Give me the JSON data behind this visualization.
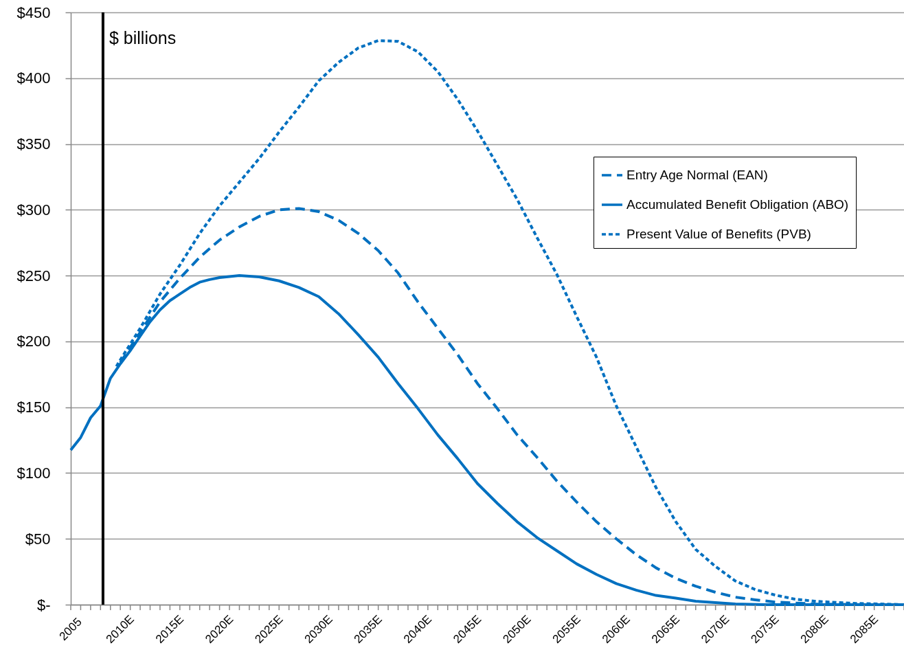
{
  "chart_data": {
    "type": "line",
    "annotations": [
      "$ billions"
    ],
    "xlim": [
      2005,
      2089
    ],
    "ylim": [
      0,
      450
    ],
    "xticks": [
      2005,
      {
        "value": 2006,
        "label": null
      },
      {
        "value": 2007,
        "label": null
      },
      {
        "value": 2008,
        "label": null
      },
      {
        "value": 2009,
        "label": null
      },
      {
        "value": 2010,
        "label": "2010E"
      },
      {
        "value": 2011,
        "label": null
      },
      {
        "value": 2012,
        "label": null
      },
      {
        "value": 2013,
        "label": null
      },
      {
        "value": 2014,
        "label": null
      },
      {
        "value": 2015,
        "label": "2015E"
      },
      {
        "value": 2016,
        "label": null
      },
      {
        "value": 2017,
        "label": null
      },
      {
        "value": 2018,
        "label": null
      },
      {
        "value": 2019,
        "label": null
      },
      {
        "value": 2020,
        "label": "2020E"
      },
      {
        "value": 2021,
        "label": null
      },
      {
        "value": 2022,
        "label": null
      },
      {
        "value": 2023,
        "label": null
      },
      {
        "value": 2024,
        "label": null
      },
      {
        "value": 2025,
        "label": "2025E"
      },
      {
        "value": 2026,
        "label": null
      },
      {
        "value": 2027,
        "label": null
      },
      {
        "value": 2028,
        "label": null
      },
      {
        "value": 2029,
        "label": null
      },
      {
        "value": 2030,
        "label": "2030E"
      },
      {
        "value": 2031,
        "label": null
      },
      {
        "value": 2032,
        "label": null
      },
      {
        "value": 2033,
        "label": null
      },
      {
        "value": 2034,
        "label": null
      },
      {
        "value": 2035,
        "label": "2035E"
      },
      {
        "value": 2036,
        "label": null
      },
      {
        "value": 2037,
        "label": null
      },
      {
        "value": 2038,
        "label": null
      },
      {
        "value": 2039,
        "label": null
      },
      {
        "value": 2040,
        "label": "2040E"
      },
      {
        "value": 2041,
        "label": null
      },
      {
        "value": 2042,
        "label": null
      },
      {
        "value": 2043,
        "label": null
      },
      {
        "value": 2044,
        "label": null
      },
      {
        "value": 2045,
        "label": "2045E"
      },
      {
        "value": 2046,
        "label": null
      },
      {
        "value": 2047,
        "label": null
      },
      {
        "value": 2048,
        "label": null
      },
      {
        "value": 2049,
        "label": null
      },
      {
        "value": 2050,
        "label": "2050E"
      },
      {
        "value": 2051,
        "label": null
      },
      {
        "value": 2052,
        "label": null
      },
      {
        "value": 2053,
        "label": null
      },
      {
        "value": 2054,
        "label": null
      },
      {
        "value": 2055,
        "label": "2055E"
      },
      {
        "value": 2056,
        "label": null
      },
      {
        "value": 2057,
        "label": null
      },
      {
        "value": 2058,
        "label": null
      },
      {
        "value": 2059,
        "label": null
      },
      {
        "value": 2060,
        "label": "2060E"
      },
      {
        "value": 2061,
        "label": null
      },
      {
        "value": 2062,
        "label": null
      },
      {
        "value": 2063,
        "label": null
      },
      {
        "value": 2064,
        "label": null
      },
      {
        "value": 2065,
        "label": "2065E"
      },
      {
        "value": 2066,
        "label": null
      },
      {
        "value": 2067,
        "label": null
      },
      {
        "value": 2068,
        "label": null
      },
      {
        "value": 2069,
        "label": null
      },
      {
        "value": 2070,
        "label": "2070E"
      },
      {
        "value": 2071,
        "label": null
      },
      {
        "value": 2072,
        "label": null
      },
      {
        "value": 2073,
        "label": null
      },
      {
        "value": 2074,
        "label": null
      },
      {
        "value": 2075,
        "label": "2075E"
      },
      {
        "value": 2076,
        "label": null
      },
      {
        "value": 2077,
        "label": null
      },
      {
        "value": 2078,
        "label": null
      },
      {
        "value": 2079,
        "label": null
      },
      {
        "value": 2080,
        "label": "2080E"
      },
      {
        "value": 2081,
        "label": null
      },
      {
        "value": 2082,
        "label": null
      },
      {
        "value": 2083,
        "label": null
      },
      {
        "value": 2084,
        "label": null
      },
      {
        "value": 2085,
        "label": "2085E"
      },
      {
        "value": 2086,
        "label": null
      },
      {
        "value": 2087,
        "label": null
      },
      {
        "value": 2088,
        "label": null
      },
      {
        "value": 2089,
        "label": null
      }
    ],
    "yticks": [
      {
        "value": 0,
        "label": "$-"
      },
      {
        "value": 50,
        "label": "$50"
      },
      {
        "value": 100,
        "label": "$100"
      },
      {
        "value": 150,
        "label": "$150"
      },
      {
        "value": 200,
        "label": "$200"
      },
      {
        "value": 250,
        "label": "$250"
      },
      {
        "value": 300,
        "label": "$300"
      },
      {
        "value": 350,
        "label": "$350"
      },
      {
        "value": 400,
        "label": "$400"
      },
      {
        "value": 450,
        "label": "$450"
      }
    ],
    "grid": "y",
    "legend": "top right",
    "ref_lines": [
      {
        "axis": "x",
        "value": 2008.25,
        "color": "#000000"
      }
    ],
    "series": [
      {
        "name": "Entry Age Normal (EAN)",
        "color": "#0070c0",
        "line_style": "dashed",
        "x": [
          2010,
          2012,
          2014,
          2016,
          2018,
          2020,
          2022,
          2024,
          2026,
          2028,
          2030,
          2032,
          2034,
          2036,
          2038,
          2040,
          2042,
          2044,
          2046,
          2048,
          2050,
          2052,
          2054,
          2056,
          2058,
          2060,
          2062,
          2064,
          2066,
          2068,
          2070,
          2072,
          2074,
          2076,
          2080,
          2085,
          2088
        ],
        "values": [
          184,
          207,
          230,
          248,
          264,
          277,
          287,
          295,
          300,
          301,
          298.6,
          292,
          282,
          269,
          252,
          230,
          210,
          190,
          168,
          149,
          129,
          112,
          94,
          78,
          63,
          50,
          38,
          28,
          20,
          14,
          9.4,
          5.7,
          3.7,
          2,
          0.5,
          0,
          0
        ]
      },
      {
        "name": "Accumulated Benefit Obligation (ABO)",
        "color": "#0070c0",
        "line_style": "solid",
        "x": [
          2005,
          2006,
          2007,
          2008,
          2009,
          2010,
          2011,
          2012,
          2013,
          2014,
          2015,
          2016,
          2017,
          2018,
          2019,
          2020,
          2022,
          2024,
          2026,
          2028,
          2030,
          2032,
          2034,
          2036,
          2038,
          2040,
          2042,
          2044,
          2046,
          2048,
          2050,
          2052,
          2054,
          2056,
          2058,
          2060,
          2062,
          2064,
          2066,
          2068,
          2070,
          2072,
          2075,
          2089
        ],
        "values": [
          117.5,
          127,
          142,
          151,
          172,
          183,
          193,
          204,
          215,
          224,
          231,
          236,
          241,
          245,
          247,
          248.5,
          250,
          249,
          246,
          241,
          234,
          221,
          205,
          188,
          168,
          149,
          129,
          111,
          92,
          77,
          63,
          51,
          41,
          31,
          23,
          16,
          11,
          7,
          5,
          2.6,
          1.6,
          0.5,
          0,
          0
        ]
      },
      {
        "name": "Present Value of Benefits (PVB)",
        "color": "#0070c0",
        "line_style": "dotted",
        "x": [
          2009.6,
          2010,
          2012,
          2014,
          2016,
          2018,
          2020,
          2022,
          2024,
          2026,
          2028,
          2030,
          2032,
          2034,
          2036,
          2038,
          2040,
          2042,
          2044,
          2046,
          2048,
          2050,
          2052,
          2054,
          2056,
          2058,
          2060,
          2062,
          2064,
          2066,
          2068,
          2070,
          2072,
          2074,
          2076,
          2078,
          2080,
          2084,
          2089
        ],
        "values": [
          181,
          186,
          210,
          236,
          258,
          282,
          303,
          321,
          339,
          359,
          378,
          398,
          412,
          423,
          428.6,
          428,
          420,
          405,
          384,
          360,
          334,
          308,
          279,
          251,
          219,
          188,
          151,
          120,
          89,
          63,
          42,
          29,
          18,
          11.5,
          7.3,
          4.2,
          2.6,
          1,
          0
        ]
      }
    ]
  }
}
